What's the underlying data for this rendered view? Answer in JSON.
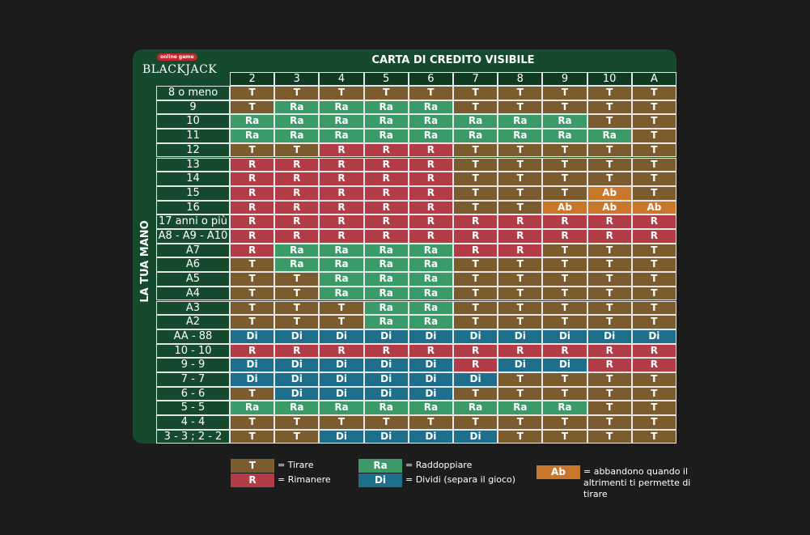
{
  "logo": {
    "badge": "online game",
    "text": "BLACKJACK"
  },
  "header_title": "CARTA DI CREDITO VISIBILE",
  "side_label": "LA TUA MANO",
  "dealer_cards": [
    "2",
    "3",
    "4",
    "5",
    "6",
    "7",
    "8",
    "9",
    "10",
    "A"
  ],
  "colors": {
    "T": "#7a5c2e",
    "R": "#b33d47",
    "Ra": "#3a9a68",
    "Di": "#1d6f8c",
    "Ab": "#c9772a"
  },
  "rows": [
    {
      "label": "8 o meno",
      "cells": [
        "T",
        "T",
        "T",
        "T",
        "T",
        "T",
        "T",
        "T",
        "T",
        "T"
      ]
    },
    {
      "label": "9",
      "cells": [
        "T",
        "Ra",
        "Ra",
        "Ra",
        "Ra",
        "T",
        "T",
        "T",
        "T",
        "T"
      ]
    },
    {
      "label": "10",
      "cells": [
        "Ra",
        "Ra",
        "Ra",
        "Ra",
        "Ra",
        "Ra",
        "Ra",
        "Ra",
        "T",
        "T"
      ]
    },
    {
      "label": "11",
      "cells": [
        "Ra",
        "Ra",
        "Ra",
        "Ra",
        "Ra",
        "Ra",
        "Ra",
        "Ra",
        "Ra",
        "T"
      ]
    },
    {
      "label": "12",
      "cells": [
        "T",
        "T",
        "R",
        "R",
        "R",
        "T",
        "T",
        "T",
        "T",
        "T"
      ]
    },
    {
      "label": "13",
      "cells": [
        "R",
        "R",
        "R",
        "R",
        "R",
        "T",
        "T",
        "T",
        "T",
        "T"
      ]
    },
    {
      "label": "14",
      "cells": [
        "R",
        "R",
        "R",
        "R",
        "R",
        "T",
        "T",
        "T",
        "T",
        "T"
      ]
    },
    {
      "label": "15",
      "cells": [
        "R",
        "R",
        "R",
        "R",
        "R",
        "T",
        "T",
        "T",
        "Ab",
        "T"
      ]
    },
    {
      "label": "16",
      "cells": [
        "R",
        "R",
        "R",
        "R",
        "R",
        "T",
        "T",
        "Ab",
        "Ab",
        "Ab"
      ]
    },
    {
      "label": "17 anni o più",
      "cells": [
        "R",
        "R",
        "R",
        "R",
        "R",
        "R",
        "R",
        "R",
        "R",
        "R"
      ]
    },
    {
      "label": "A8 - A9 - A10",
      "cells": [
        "R",
        "R",
        "R",
        "R",
        "R",
        "R",
        "R",
        "R",
        "R",
        "R"
      ]
    },
    {
      "label": "A7",
      "cells": [
        "R",
        "Ra",
        "Ra",
        "Ra",
        "Ra",
        "R",
        "R",
        "T",
        "T",
        "T"
      ]
    },
    {
      "label": "A6",
      "cells": [
        "T",
        "Ra",
        "Ra",
        "Ra",
        "Ra",
        "T",
        "T",
        "T",
        "T",
        "T"
      ]
    },
    {
      "label": "A5",
      "cells": [
        "T",
        "T",
        "Ra",
        "Ra",
        "Ra",
        "T",
        "T",
        "T",
        "T",
        "T"
      ]
    },
    {
      "label": "A4",
      "cells": [
        "T",
        "T",
        "Ra",
        "Ra",
        "Ra",
        "T",
        "T",
        "T",
        "T",
        "T"
      ]
    },
    {
      "label": "A3",
      "cells": [
        "T",
        "T",
        "T",
        "Ra",
        "Ra",
        "T",
        "T",
        "T",
        "T",
        "T"
      ]
    },
    {
      "label": "A2",
      "cells": [
        "T",
        "T",
        "T",
        "Ra",
        "Ra",
        "T",
        "T",
        "T",
        "T",
        "T"
      ]
    },
    {
      "label": "AA - 88",
      "cells": [
        "Di",
        "Di",
        "Di",
        "Di",
        "Di",
        "Di",
        "Di",
        "Di",
        "Di",
        "Di"
      ]
    },
    {
      "label": "10 - 10",
      "cells": [
        "R",
        "R",
        "R",
        "R",
        "R",
        "R",
        "R",
        "R",
        "R",
        "R"
      ]
    },
    {
      "label": "9 - 9",
      "cells": [
        "Di",
        "Di",
        "Di",
        "Di",
        "Di",
        "R",
        "Di",
        "Di",
        "R",
        "R"
      ]
    },
    {
      "label": "7 - 7",
      "cells": [
        "Di",
        "Di",
        "Di",
        "Di",
        "Di",
        "Di",
        "T",
        "T",
        "T",
        "T"
      ]
    },
    {
      "label": "6 - 6",
      "cells": [
        "T",
        "Di",
        "Di",
        "Di",
        "Di",
        "T",
        "T",
        "T",
        "T",
        "T"
      ]
    },
    {
      "label": "5 - 5",
      "cells": [
        "Ra",
        "Ra",
        "Ra",
        "Ra",
        "Ra",
        "Ra",
        "Ra",
        "Ra",
        "T",
        "T"
      ]
    },
    {
      "label": "4 - 4",
      "cells": [
        "T",
        "T",
        "T",
        "T",
        "T",
        "T",
        "T",
        "T",
        "T",
        "T"
      ]
    },
    {
      "label": "3 - 3 ; 2 - 2",
      "cells": [
        "T",
        "T",
        "Di",
        "Di",
        "Di",
        "Di",
        "T",
        "T",
        "T",
        "T"
      ]
    }
  ],
  "legend": {
    "T": "= Tirare",
    "R": "= Rimanere",
    "Ra": "= Raddoppiare",
    "Di": "= Dividi (separa il gioco)",
    "Ab": "= abbandono quando il altrimenti ti permette di tirare"
  }
}
